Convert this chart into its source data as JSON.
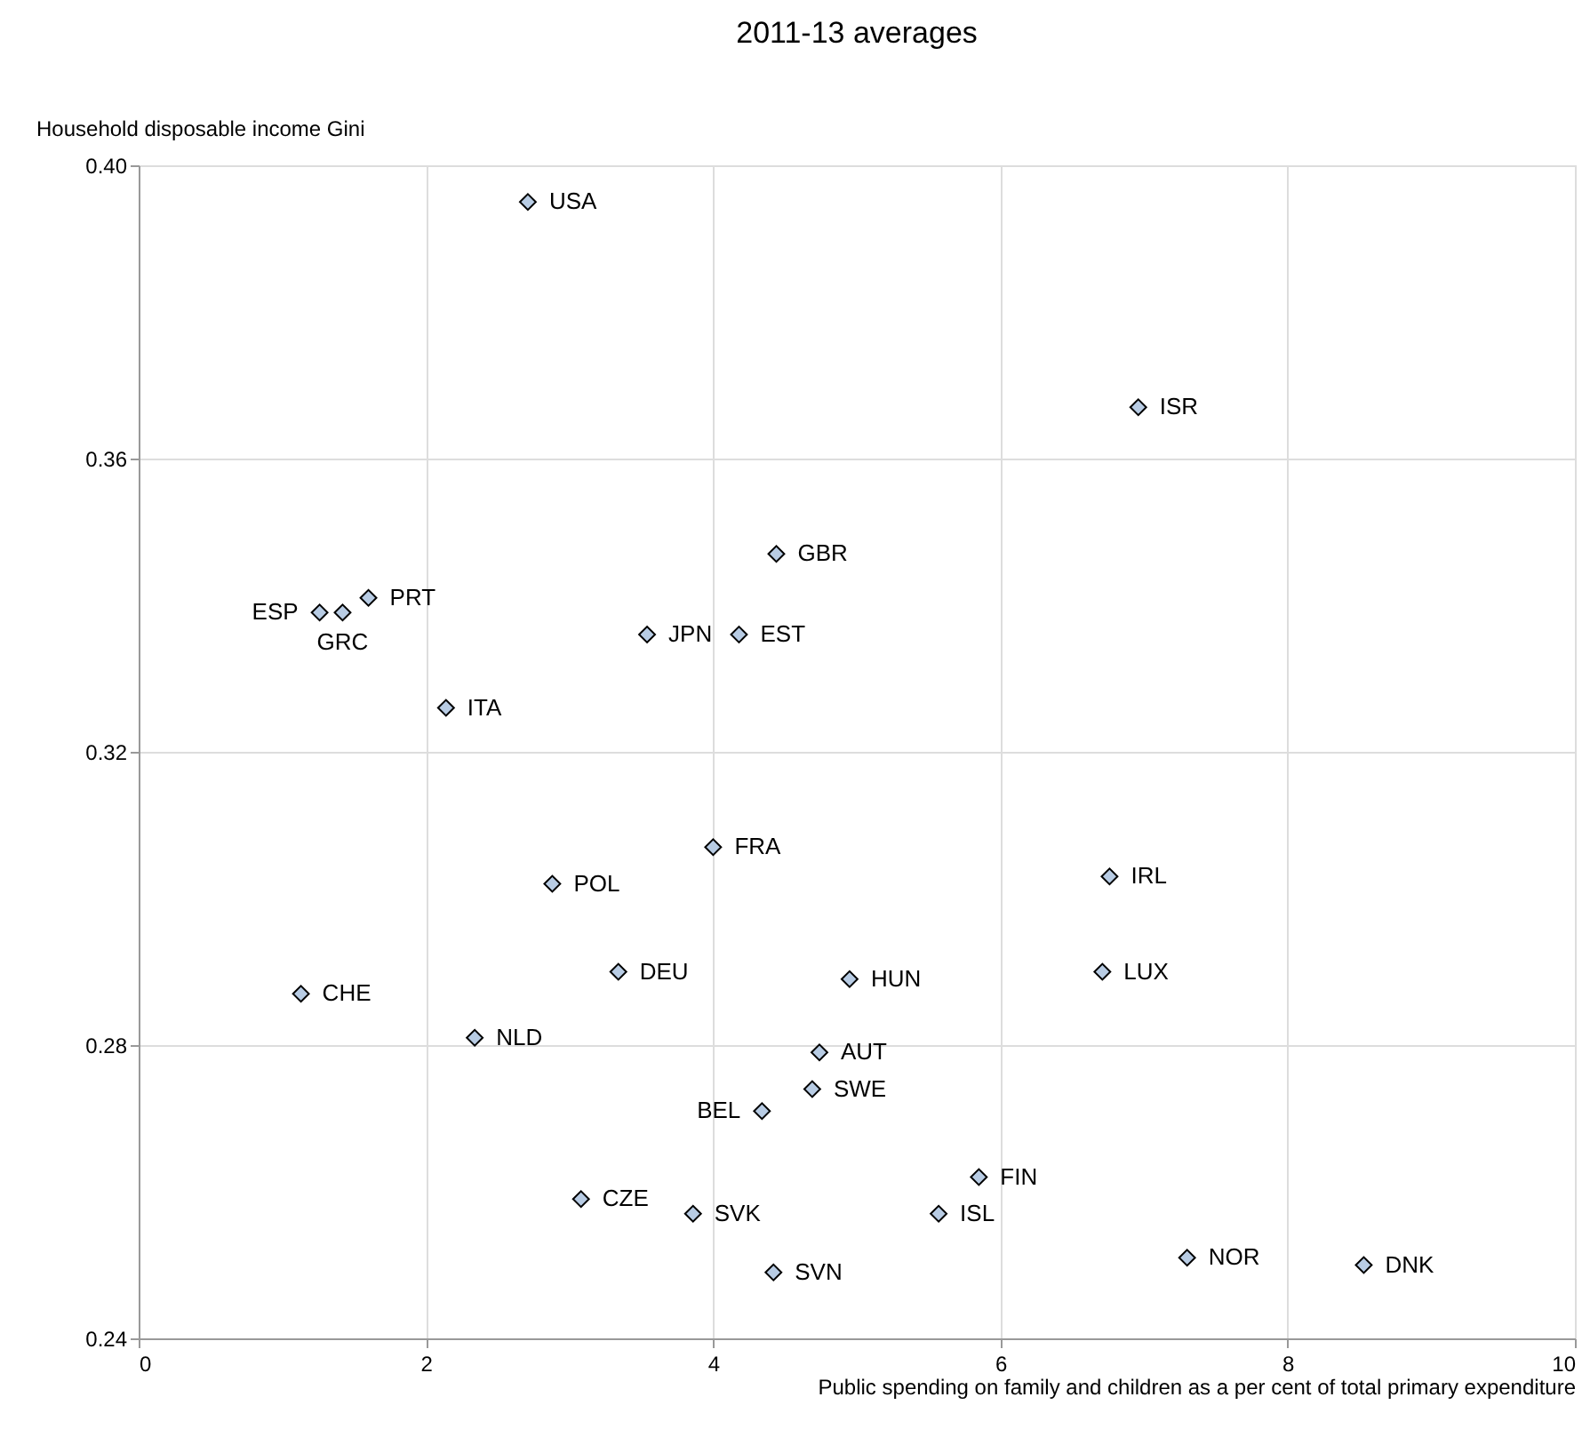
{
  "chart_data": {
    "type": "scatter",
    "title": "2011-13 averages",
    "xlabel": "Public spending on family and children as a per cent of total primary expenditure",
    "ylabel": "Household disposable income Gini",
    "x": [
      2.71,
      6.96,
      4.44,
      1.26,
      1.42,
      1.6,
      3.54,
      4.18,
      2.14,
      4.0,
      2.88,
      6.76,
      1.13,
      3.34,
      4.95,
      6.71,
      2.34,
      4.74,
      4.69,
      4.34,
      5.85,
      5.57,
      3.08,
      3.86,
      4.42,
      7.3,
      8.53
    ],
    "series": [
      {
        "color": "#b8cce4",
        "values": [
          0.395,
          0.367,
          0.347,
          0.339,
          0.339,
          0.341,
          0.336,
          0.336,
          0.326,
          0.307,
          0.302,
          0.303,
          0.287,
          0.29,
          0.289,
          0.29,
          0.281,
          0.279,
          0.274,
          0.271,
          0.262,
          0.257,
          0.259,
          0.257,
          0.249,
          0.251,
          0.25
        ]
      }
    ],
    "annotations": [
      {
        "text": "USA",
        "x": 2.71,
        "y": 0.395
      },
      {
        "text": "ISR",
        "x": 6.96,
        "y": 0.367
      },
      {
        "text": "GBR",
        "x": 4.44,
        "y": 0.347
      },
      {
        "text": "ESP",
        "x": 1.26,
        "y": 0.339
      },
      {
        "text": "GRC",
        "x": 1.42,
        "y": 0.339
      },
      {
        "text": "PRT",
        "x": 1.6,
        "y": 0.341
      },
      {
        "text": "JPN",
        "x": 3.54,
        "y": 0.336
      },
      {
        "text": "EST",
        "x": 4.18,
        "y": 0.336
      },
      {
        "text": "ITA",
        "x": 2.14,
        "y": 0.326
      },
      {
        "text": "FRA",
        "x": 4.0,
        "y": 0.307
      },
      {
        "text": "POL",
        "x": 2.88,
        "y": 0.302
      },
      {
        "text": "IRL",
        "x": 6.76,
        "y": 0.303
      },
      {
        "text": "CHE",
        "x": 1.13,
        "y": 0.287
      },
      {
        "text": "DEU",
        "x": 3.34,
        "y": 0.29
      },
      {
        "text": "HUN",
        "x": 4.95,
        "y": 0.289
      },
      {
        "text": "LUX",
        "x": 6.71,
        "y": 0.29
      },
      {
        "text": "NLD",
        "x": 2.34,
        "y": 0.281
      },
      {
        "text": "AUT",
        "x": 4.74,
        "y": 0.279
      },
      {
        "text": "SWE",
        "x": 4.69,
        "y": 0.274
      },
      {
        "text": "BEL",
        "x": 4.34,
        "y": 0.271
      },
      {
        "text": "FIN",
        "x": 5.85,
        "y": 0.262
      },
      {
        "text": "ISL",
        "x": 5.57,
        "y": 0.257
      },
      {
        "text": "CZE",
        "x": 3.08,
        "y": 0.259
      },
      {
        "text": "SVK",
        "x": 3.86,
        "y": 0.257
      },
      {
        "text": "SVN",
        "x": 4.42,
        "y": 0.249
      },
      {
        "text": "NOR",
        "x": 7.3,
        "y": 0.251
      },
      {
        "text": "DNK",
        "x": 8.53,
        "y": 0.25
      }
    ],
    "xlim": [
      0,
      10
    ],
    "xticks": [
      0,
      2,
      4,
      6,
      8,
      10
    ],
    "ylim": [
      0.24,
      0.4
    ],
    "yticks": [
      {
        "value": 0.24,
        "label": "0.24"
      },
      {
        "value": 0.28,
        "label": "0.28"
      },
      {
        "value": 0.32,
        "label": "0.32"
      },
      {
        "value": 0.36,
        "label": "0.36"
      },
      {
        "value": 0.4,
        "label": "0.40"
      }
    ],
    "grid": true,
    "marker": "diamond"
  }
}
